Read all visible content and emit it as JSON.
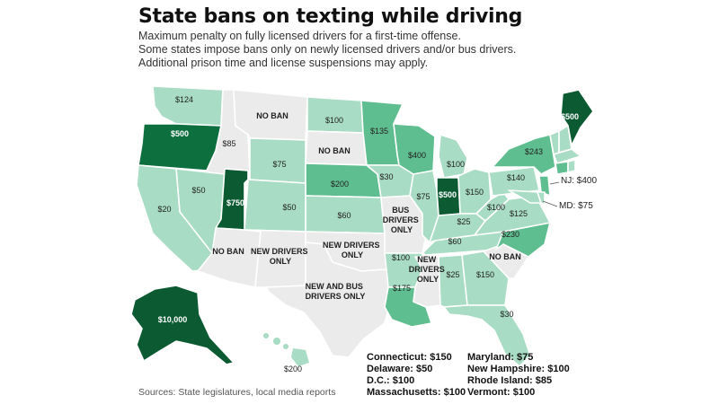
{
  "title": "State bans on texting while driving",
  "subtitle_lines": [
    "Maximum penalty on fully licensed drivers for a first-time offense.",
    "Some states impose bans only on newly licensed drivers and/or bus drivers.",
    "Additional prison time and license suspensions may apply."
  ],
  "colors": {
    "no_ban": "#ebebeb",
    "light": "#a8dcc4",
    "medium": "#5fbe8f",
    "dark": "#0d6e3e",
    "darkest": "#0b5a32"
  },
  "labels": {
    "wa": "$124",
    "or": "$500",
    "mt": "NO BAN",
    "id": "$85",
    "wy": "$75",
    "nd": "$100",
    "sd": "NO BAN",
    "ne": "$200",
    "nv": "$50",
    "ut": "$750",
    "co": "$50",
    "ca": "$20",
    "az": "NO BAN",
    "nm": "NEW DRIVERS ONLY",
    "tx": "NEW AND BUS DRIVERS ONLY",
    "ok": "NEW DRIVERS ONLY",
    "ks": "$60",
    "mn": "$135",
    "ia": "$30",
    "mo": "BUS DRIVERS ONLY",
    "ar": "$100",
    "la": "$175",
    "wi": "$400",
    "il": "$75",
    "mi": "$100",
    "in": "$500",
    "oh": "$150",
    "ky": "$25",
    "tn": "$60",
    "ms": "NEW DRIVERS ONLY",
    "al": "$25",
    "ga": "$150",
    "fl": "$30",
    "sc": "NO BAN",
    "nc": "$230",
    "va": "$125",
    "wv": "$100",
    "pa": "$140",
    "ny": "$243",
    "me": "$500",
    "ak": "$10,000",
    "hi": "$200"
  },
  "callouts": {
    "nj": "NJ: $400",
    "md": "MD: $75"
  },
  "footnotes_left": [
    "Connecticut: $150",
    "Delaware: $50",
    "D.C.: $100",
    "Massachusetts: $100"
  ],
  "footnotes_right": [
    "Maryland: $75",
    "New Hampshire: $100",
    "Rhode Island: $85",
    "Vermont: $100"
  ],
  "source": "Sources: State legislatures, local media reports"
}
